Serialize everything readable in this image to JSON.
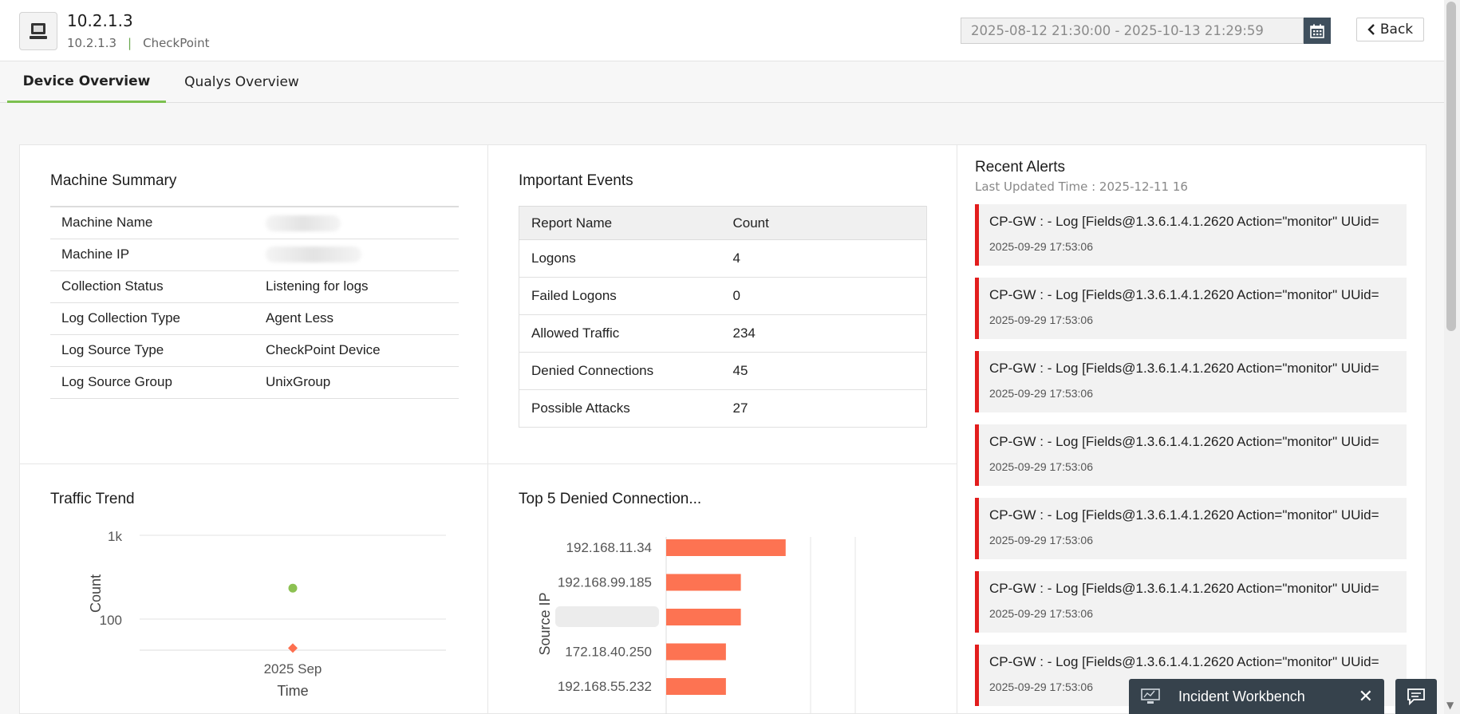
{
  "device": {
    "title": "10.2.1.3",
    "ip": "10.2.1.3",
    "separator": "|",
    "vendor": "CheckPoint",
    "icon": "computer-icon"
  },
  "date_range": "2025-08-12 21:30:00 - 2025-10-13 21:29:59",
  "back_label": "Back",
  "tabs": [
    {
      "label": "Device Overview",
      "active": true
    },
    {
      "label": "Qualys Overview",
      "active": false
    }
  ],
  "machine_summary": {
    "title": "Machine Summary",
    "rows": [
      {
        "label": "Machine Name",
        "value": ""
      },
      {
        "label": "Machine IP",
        "value": ""
      },
      {
        "label": "Collection Status",
        "value": "Listening for logs"
      },
      {
        "label": "Log Collection Type",
        "value": "Agent Less"
      },
      {
        "label": "Log Source Type",
        "value": "CheckPoint Device"
      },
      {
        "label": "Log Source Group",
        "value": "UnixGroup"
      }
    ]
  },
  "important_events": {
    "title": "Important Events",
    "headers": [
      "Report Name",
      "Count"
    ],
    "rows": [
      {
        "name": "Logons",
        "count": "4"
      },
      {
        "name": "Failed Logons",
        "count": "0"
      },
      {
        "name": "Allowed Traffic",
        "count": "234"
      },
      {
        "name": "Denied Connections",
        "count": "45"
      },
      {
        "name": "Possible Attacks",
        "count": "27"
      }
    ]
  },
  "recent_alerts": {
    "title": "Recent Alerts",
    "last_updated": "Last Updated Time : 2025-12-11 16",
    "items": [
      {
        "message": "CP-GW : - Log [Fields@1.3.6.1.4.1.2620 Action=\"monitor\" UUid=",
        "time": "2025-09-29 17:53:06"
      },
      {
        "message": "CP-GW : - Log [Fields@1.3.6.1.4.1.2620 Action=\"monitor\" UUid=",
        "time": "2025-09-29 17:53:06"
      },
      {
        "message": "CP-GW : - Log [Fields@1.3.6.1.4.1.2620 Action=\"monitor\" UUid=",
        "time": "2025-09-29 17:53:06"
      },
      {
        "message": "CP-GW : - Log [Fields@1.3.6.1.4.1.2620 Action=\"monitor\" UUid=",
        "time": "2025-09-29 17:53:06"
      },
      {
        "message": "CP-GW : - Log [Fields@1.3.6.1.4.1.2620 Action=\"monitor\" UUid=",
        "time": "2025-09-29 17:53:06"
      },
      {
        "message": "CP-GW : - Log [Fields@1.3.6.1.4.1.2620 Action=\"monitor\" UUid=",
        "time": "2025-09-29 17:53:06"
      },
      {
        "message": "CP-GW : - Log [Fields@1.3.6.1.4.1.2620 Action=\"monitor\" UUid=",
        "time": "2025-09-29 17:53:06"
      }
    ],
    "accent_color": "#e21d1d"
  },
  "traffic_trend": {
    "title": "Traffic Trend",
    "chart_data": {
      "type": "scatter",
      "scale": "log",
      "ylabel": "Count",
      "xlabel": "Time",
      "y_ticks": [
        "1k",
        "100"
      ],
      "x_ticks": [
        "2025 Sep"
      ],
      "series": [
        {
          "value": 234,
          "color": "#8cc152",
          "marker": "circle"
        },
        {
          "value": 45,
          "color": "#fd6f4f",
          "marker": "diamond"
        }
      ]
    }
  },
  "top_denied": {
    "title": "Top 5 Denied Connection...",
    "chart_data": {
      "type": "bar",
      "orientation": "horizontal",
      "ylabel": "Source IP",
      "categories": [
        "192.168.11.34",
        "192.168.99.185",
        "",
        "172.18.40.250",
        "192.168.55.232"
      ],
      "values": [
        16,
        10,
        10,
        8,
        8
      ],
      "xlim": [
        0,
        20
      ],
      "color": "#fd7352"
    }
  },
  "workbench": {
    "label": "Incident Workbench"
  }
}
